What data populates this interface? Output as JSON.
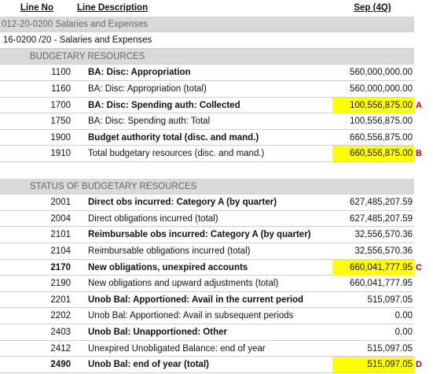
{
  "header": {
    "line_no": "Line No",
    "description": "Line Description",
    "period": "Sep (4Q)"
  },
  "rows": [
    {
      "kind": "account",
      "text": "012-20-0200   Salaries and Expenses"
    },
    {
      "kind": "title",
      "text": "16-0200 /20 - Salaries and Expenses"
    },
    {
      "kind": "section",
      "text": "BUDGETARY RESOURCES"
    },
    {
      "kind": "line",
      "line_no": "1100",
      "description": "BA: Disc: Appropriation",
      "value": "560,000,000.00",
      "bold": true
    },
    {
      "kind": "line",
      "line_no": "1160",
      "description": "BA: Disc: Appropriation (total)",
      "value": "560,000,000.00"
    },
    {
      "kind": "line",
      "line_no": "1700",
      "description": "BA: Disc: Spending auth: Collected",
      "value": "100,556,875.00",
      "bold": true,
      "highlight": true,
      "marker": "A"
    },
    {
      "kind": "line",
      "line_no": "1750",
      "description": "BA: Disc: Spending auth: Total",
      "value": "100,556,875.00"
    },
    {
      "kind": "line",
      "line_no": "1900",
      "description": "Budget authority total (disc. and mand.)",
      "value": "660,556,875.00",
      "bold": true
    },
    {
      "kind": "line",
      "line_no": "1910",
      "description": "Total budgetary resources (disc. and mand.)",
      "value": "660,556,875.00",
      "highlight": true,
      "marker": "B"
    },
    {
      "kind": "section",
      "text": "STATUS OF BUDGETARY RESOURCES"
    },
    {
      "kind": "line",
      "line_no": "2001",
      "description": "Direct obs incurred: Category A (by quarter)",
      "value": "627,485,207.59",
      "bold": true
    },
    {
      "kind": "line",
      "line_no": "2004",
      "description": "Direct obligations incurred (total)",
      "value": "627,485,207.59"
    },
    {
      "kind": "line",
      "line_no": "2101",
      "description": "Reimbursable obs incurred: Category A (by quarter)",
      "value": "32,556,570.36",
      "bold": true
    },
    {
      "kind": "line",
      "line_no": "2104",
      "description": "Reimbursable obligations incurred (total)",
      "value": "32,556,570.36"
    },
    {
      "kind": "line",
      "line_no": "2170",
      "description": "New obligations, unexpired accounts",
      "value": "660,041,777.95",
      "bold": true,
      "bold_no": true,
      "highlight": true,
      "marker": "C"
    },
    {
      "kind": "line",
      "line_no": "2190",
      "description": "New obligations and upward adjustments (total)",
      "value": "660,041,777.95"
    },
    {
      "kind": "line",
      "line_no": "2201",
      "description": "Unob Bal: Apportioned: Avail in the current period",
      "value": "515,097.05",
      "bold": true
    },
    {
      "kind": "line",
      "line_no": "2202",
      "description": "Unob Bal: Apportioned: Avail in subsequent periods",
      "value": "0.00"
    },
    {
      "kind": "line",
      "line_no": "2403",
      "description": "Unob Bal: Unapportioned: Other",
      "value": "0.00",
      "bold": true
    },
    {
      "kind": "line",
      "line_no": "2412",
      "description": "Unexpired Unobligated Balance: end of year",
      "value": "515,097.05"
    },
    {
      "kind": "line",
      "line_no": "2490",
      "description": "Unob Bal: end of year (total)",
      "value": "515,097.05",
      "bold": true,
      "bold_no": true,
      "highlight": true,
      "marker": "D"
    }
  ]
}
